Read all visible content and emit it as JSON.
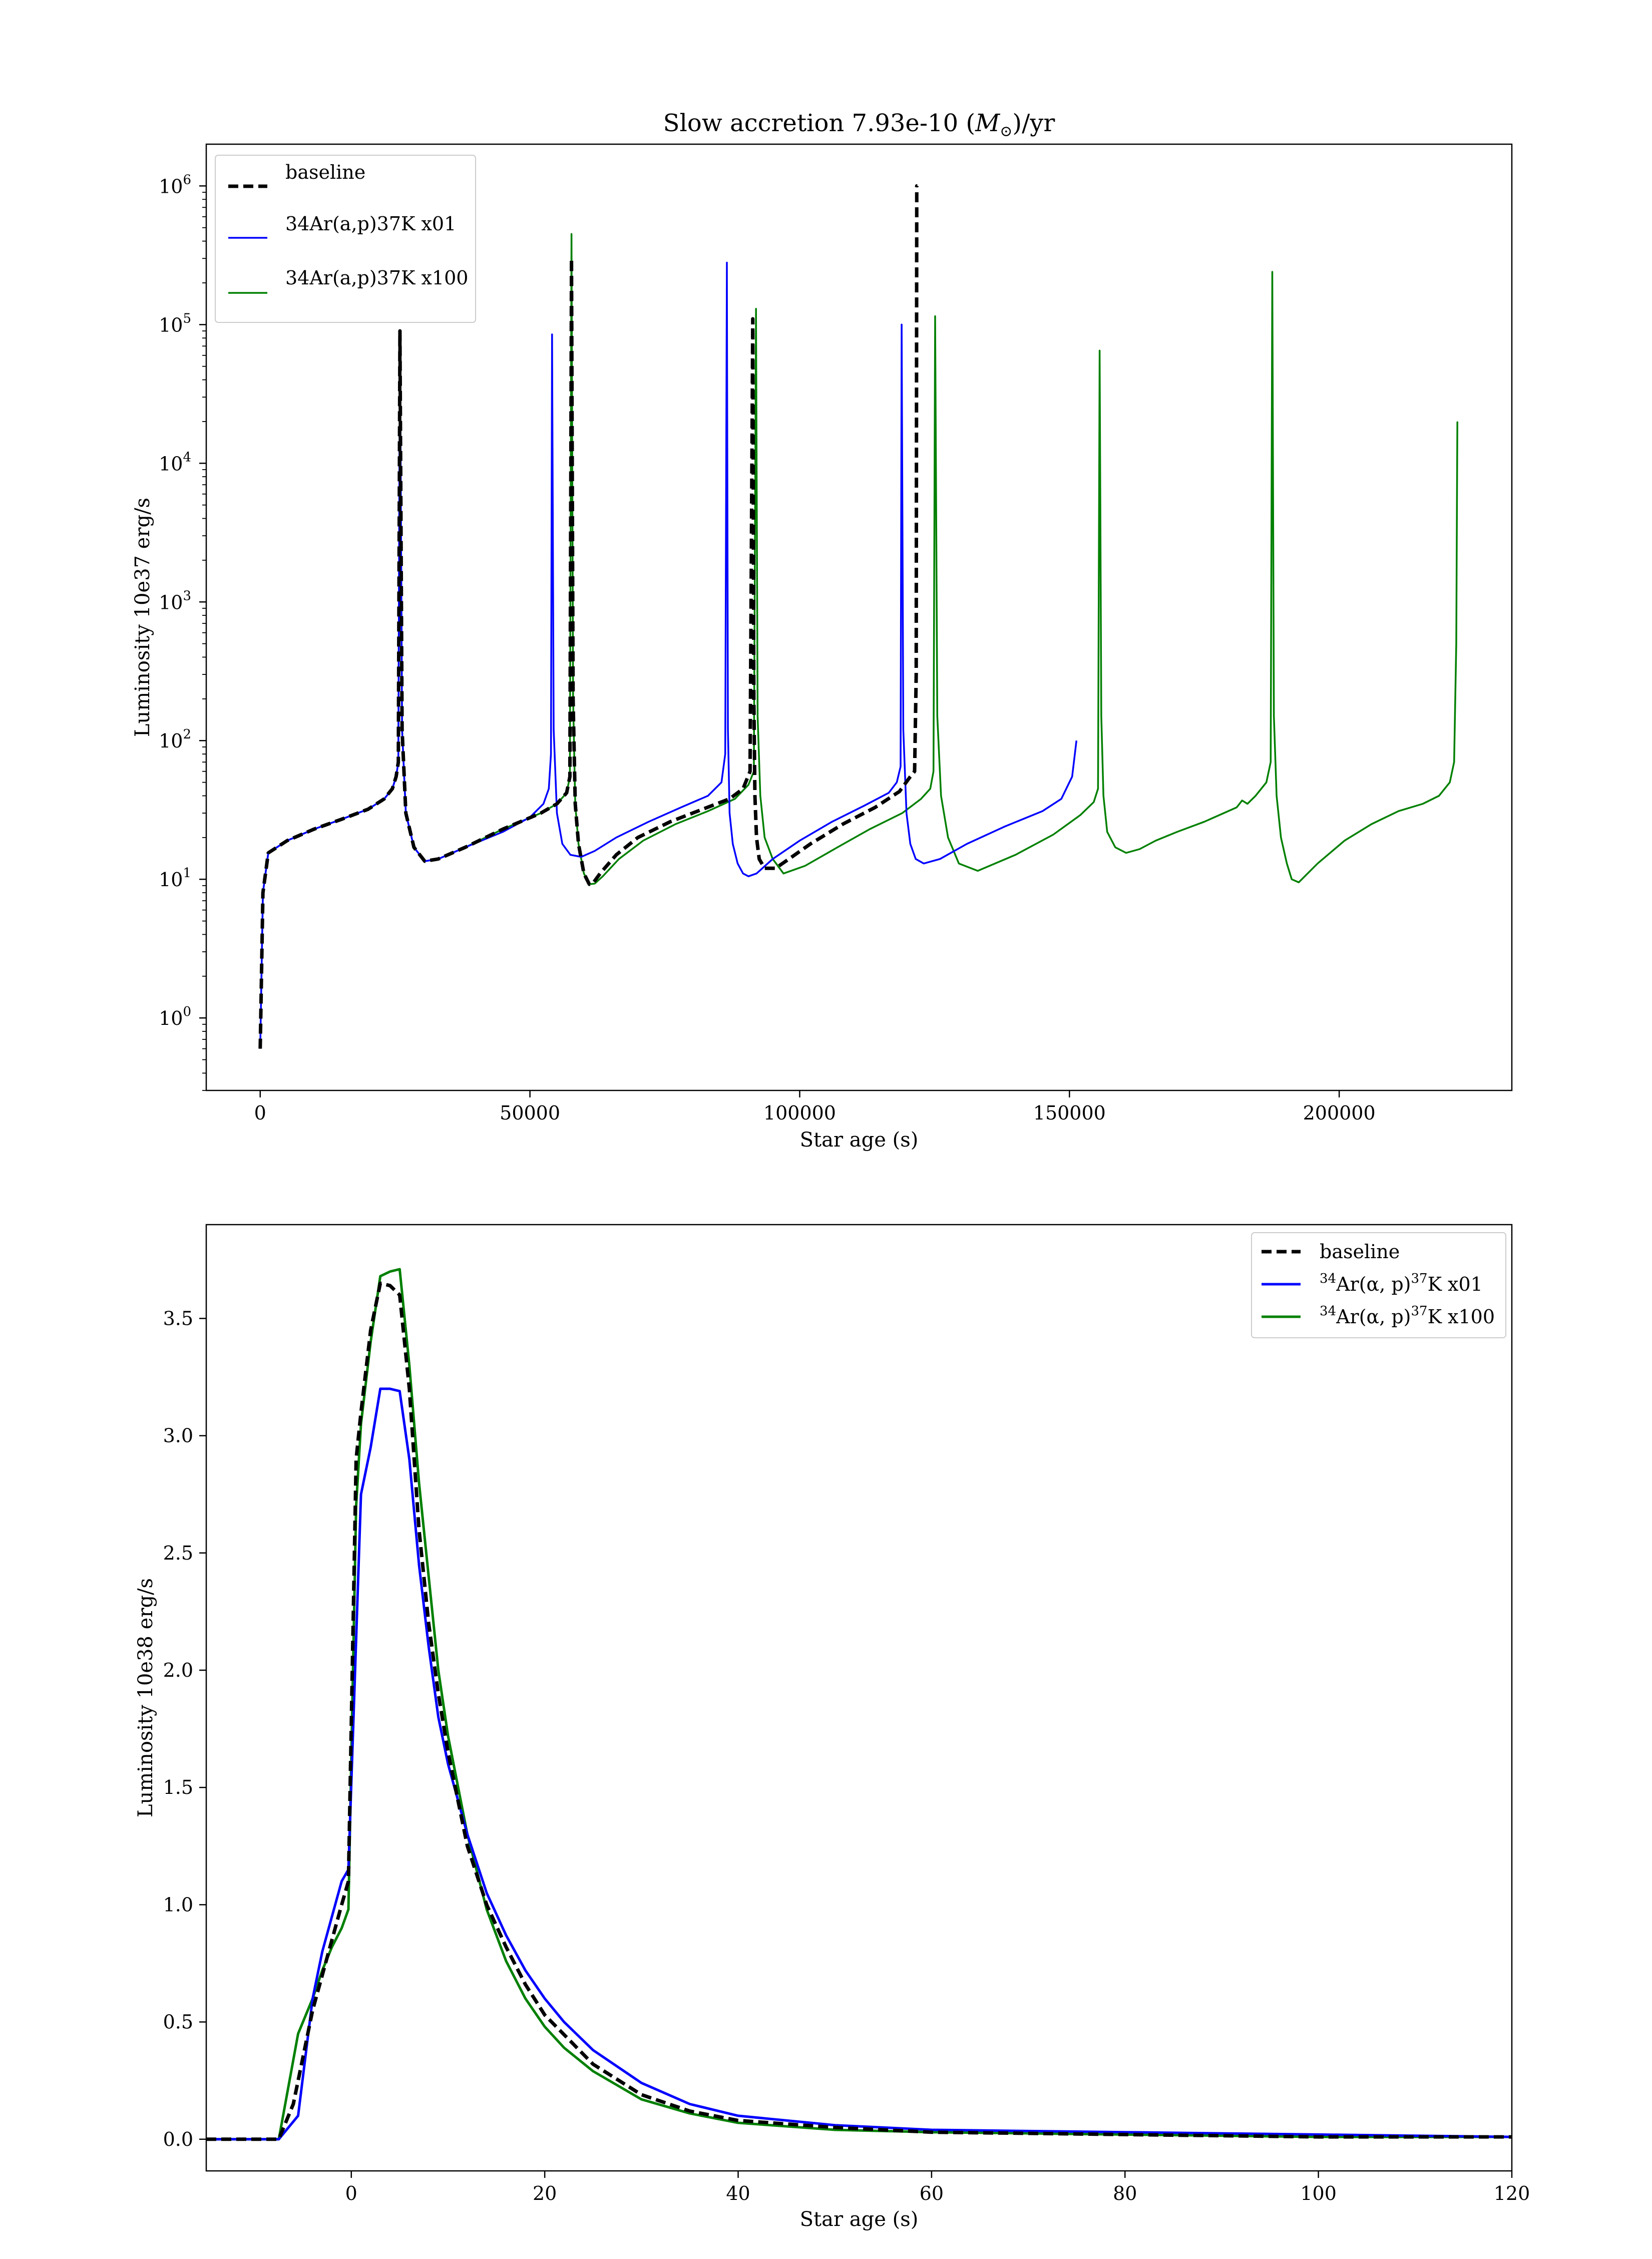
{
  "colors": {
    "baseline": "#000000",
    "x01": "#0000ff",
    "x100": "#008000"
  },
  "chart_data": [
    {
      "type": "line",
      "title": "Slow accretion 7.93e-10 (M⊙)/yr",
      "xlabel": "Star age (s)",
      "ylabel": "Luminosity 10e37 erg/s",
      "yscale": "log",
      "xlim": [
        -10000,
        232000
      ],
      "ylim": [
        0.3,
        2000000
      ],
      "xticks": [
        {
          "value": 0,
          "label": "0"
        },
        {
          "value": 50000,
          "label": "50000"
        },
        {
          "value": 100000,
          "label": "100000"
        },
        {
          "value": 150000,
          "label": "150000"
        },
        {
          "value": 200000,
          "label": "200000"
        }
      ],
      "yticks": [
        {
          "value": 1,
          "base": "10",
          "exp": "0"
        },
        {
          "value": 10,
          "base": "10",
          "exp": "1"
        },
        {
          "value": 100,
          "base": "10",
          "exp": "2"
        },
        {
          "value": 1000,
          "base": "10",
          "exp": "3"
        },
        {
          "value": 10000,
          "base": "10",
          "exp": "4"
        },
        {
          "value": 100000,
          "base": "10",
          "exp": "5"
        },
        {
          "value": 1000000,
          "base": "10",
          "exp": "6"
        }
      ],
      "legend_position": "upper-left",
      "series": [
        {
          "name": "baseline",
          "style": "dashed",
          "x": [
            0,
            500,
            1500,
            5000,
            10000,
            15000,
            20000,
            23000,
            24500,
            25200,
            25600,
            25900,
            26300,
            27000,
            28500,
            30500,
            33000,
            38000,
            45000,
            52000,
            55000,
            56800,
            57400,
            57700,
            58000,
            58400,
            59000,
            60000,
            61000,
            61800,
            63000,
            66000,
            70000,
            76000,
            82000,
            87000,
            89500,
            90800,
            91300,
            91500,
            91700,
            92000,
            92500,
            93500,
            95500,
            98000,
            102000,
            108000,
            114000,
            118500,
            120500,
            121300,
            121600,
            121700,
            121800
          ],
          "y": [
            0.6,
            8,
            15.5,
            19,
            23,
            27,
            32,
            38,
            45,
            55,
            70,
            90000,
            120,
            30,
            17,
            13.5,
            14,
            17,
            23,
            30,
            35,
            42,
            55,
            300000,
            200,
            35,
            18,
            11,
            9.2,
            9.5,
            11,
            15,
            20,
            26,
            32,
            38,
            45,
            60,
            110000,
            200,
            40,
            20,
            14,
            12,
            12,
            14,
            18,
            25,
            33,
            43,
            55,
            60,
            300,
            1000000,
            1000000
          ]
        },
        {
          "name": "34Ar(a,p)37K x01",
          "legend_label": "34Ar(a,p)37K x01",
          "style": "solid",
          "x": [
            0,
            500,
            1500,
            5000,
            10000,
            15000,
            20000,
            23000,
            24500,
            25200,
            25600,
            25900,
            26300,
            27000,
            28500,
            30500,
            33000,
            38000,
            45000,
            50000,
            52500,
            53500,
            53900,
            54100,
            54400,
            55000,
            56000,
            57500,
            59500,
            62000,
            66000,
            72000,
            78000,
            83000,
            85500,
            86200,
            86500,
            86700,
            87000,
            87600,
            88500,
            89500,
            90500,
            92000,
            95000,
            100000,
            106000,
            112000,
            116500,
            118000,
            118700,
            118900,
            119200,
            119800,
            120500,
            121500,
            123000,
            126000,
            131000,
            138000,
            145000,
            148500,
            150500,
            151300
          ],
          "y": [
            0.6,
            8,
            15.5,
            19,
            23,
            27,
            32,
            38,
            45,
            55,
            70,
            90000,
            120,
            30,
            17,
            13.5,
            14,
            17,
            22,
            28,
            35,
            45,
            80,
            85000,
            120,
            30,
            18,
            15,
            14.5,
            16,
            20,
            26,
            33,
            40,
            50,
            80,
            280000,
            120,
            30,
            18,
            13,
            11,
            10.5,
            11,
            14,
            19,
            26,
            34,
            42,
            50,
            65,
            100000,
            120,
            30,
            18,
            14,
            13,
            14,
            18,
            24,
            31,
            38,
            55,
            100
          ]
        },
        {
          "name": "34Ar(a,p)37K x100",
          "legend_label": "34Ar(a,p)37K x100",
          "style": "solid",
          "x": [
            0,
            500,
            1500,
            5000,
            10000,
            15000,
            20000,
            23000,
            24500,
            25200,
            25600,
            25900,
            26300,
            27000,
            28500,
            30500,
            33000,
            38000,
            45000,
            52000,
            55000,
            56800,
            57400,
            57700,
            58000,
            58400,
            59000,
            60000,
            61000,
            62000,
            63500,
            66500,
            71000,
            77000,
            83000,
            88000,
            90500,
            91500,
            91900,
            92200,
            92700,
            93500,
            95000,
            97000,
            101000,
            107000,
            113000,
            119000,
            122500,
            124200,
            124800,
            125100,
            125500,
            126200,
            127500,
            129500,
            133000,
            140000,
            147000,
            152000,
            154500,
            155300,
            155600,
            155900,
            156300,
            157000,
            158500,
            160500,
            163000,
            166000,
            170000,
            175000,
            181000,
            182000,
            183000,
            184500,
            186500,
            187300,
            187600,
            187900,
            188400,
            189200,
            190300,
            191200,
            192500,
            196000,
            201000,
            206000,
            211000,
            215500,
            218500,
            220500,
            221300,
            221700,
            221900
          ],
          "y": [
            0.6,
            8,
            15.5,
            19,
            23,
            27,
            32,
            38,
            45,
            55,
            70,
            90000,
            120,
            30,
            17,
            13.5,
            14,
            17,
            23,
            30,
            35,
            42,
            55,
            450000,
            200,
            35,
            18,
            11,
            9.2,
            9.3,
            10.5,
            14,
            19,
            25,
            31,
            38,
            48,
            60,
            130000,
            150,
            40,
            20,
            14,
            11,
            12.5,
            17,
            23,
            30,
            38,
            45,
            60,
            115000,
            150,
            40,
            20,
            13,
            11.5,
            15,
            21,
            29,
            36,
            45,
            65000,
            150,
            40,
            22,
            17,
            15.5,
            16.5,
            19,
            22,
            26,
            33,
            37,
            35,
            40,
            50,
            70,
            240000,
            150,
            40,
            20,
            13,
            10,
            9.5,
            13,
            19,
            25,
            31,
            35,
            40,
            50,
            70,
            500,
            20000
          ]
        }
      ]
    },
    {
      "type": "line",
      "xlabel": "Star age (s)",
      "ylabel": "Luminosity 10e38 erg/s",
      "yscale": "linear",
      "xlim": [
        -15,
        120
      ],
      "ylim": [
        -0.135,
        3.9
      ],
      "xticks": [
        {
          "value": 0,
          "label": "0"
        },
        {
          "value": 20,
          "label": "20"
        },
        {
          "value": 40,
          "label": "40"
        },
        {
          "value": 60,
          "label": "60"
        },
        {
          "value": 80,
          "label": "80"
        },
        {
          "value": 100,
          "label": "100"
        },
        {
          "value": 120,
          "label": "120"
        }
      ],
      "yticks": [
        {
          "value": 0.0,
          "label": "0.0"
        },
        {
          "value": 0.5,
          "label": "0.5"
        },
        {
          "value": 1.0,
          "label": "1.0"
        },
        {
          "value": 1.5,
          "label": "1.5"
        },
        {
          "value": 2.0,
          "label": "2.0"
        },
        {
          "value": 2.5,
          "label": "2.5"
        },
        {
          "value": 3.0,
          "label": "3.0"
        },
        {
          "value": 3.5,
          "label": "3.5"
        }
      ],
      "legend_position": "upper-right",
      "series": [
        {
          "name": "baseline",
          "style": "dashed",
          "x": [
            -15,
            -7.5,
            -6,
            -5,
            -4,
            -3,
            -2,
            -1,
            -0.3,
            0.5,
            1,
            2,
            3,
            4,
            5,
            6,
            7,
            8,
            9,
            10,
            12,
            14,
            16,
            18,
            20,
            25,
            30,
            35,
            40,
            50,
            60,
            80,
            100,
            120
          ],
          "y": [
            0.0,
            0.0,
            0.15,
            0.35,
            0.55,
            0.7,
            0.85,
            1.0,
            1.1,
            2.9,
            3.1,
            3.45,
            3.65,
            3.64,
            3.6,
            3.2,
            2.6,
            2.2,
            1.9,
            1.65,
            1.25,
            1.0,
            0.82,
            0.66,
            0.53,
            0.32,
            0.19,
            0.12,
            0.08,
            0.05,
            0.03,
            0.02,
            0.01,
            0.01
          ]
        },
        {
          "name": "34Ar(α,p)37K x01",
          "legend_main": "Ar(α, p)",
          "legend_sup1": "34",
          "legend_sup2": "37",
          "legend_tail": "K x01",
          "style": "solid",
          "x": [
            -15,
            -7.5,
            -5.5,
            -4,
            -3,
            -2,
            -1,
            -0.3,
            1,
            2,
            3,
            4,
            5,
            6,
            7,
            8,
            9,
            10,
            12,
            14,
            16,
            18,
            20,
            22,
            25,
            30,
            35,
            40,
            50,
            60,
            80,
            100,
            120
          ],
          "y": [
            0.0,
            0.0,
            0.1,
            0.6,
            0.8,
            0.95,
            1.1,
            1.15,
            2.75,
            2.95,
            3.2,
            3.2,
            3.19,
            2.9,
            2.45,
            2.1,
            1.8,
            1.6,
            1.3,
            1.05,
            0.87,
            0.72,
            0.6,
            0.5,
            0.38,
            0.24,
            0.15,
            0.1,
            0.06,
            0.04,
            0.03,
            0.02,
            0.01
          ]
        },
        {
          "name": "34Ar(α,p)37K x100",
          "legend_main": "Ar(α, p)",
          "legend_sup1": "34",
          "legend_sup2": "37",
          "legend_tail": "K x100",
          "style": "solid",
          "x": [
            -15,
            -7.5,
            -5.5,
            -4,
            -3,
            -2,
            -1,
            -0.3,
            0.5,
            1,
            2,
            3,
            4,
            5,
            6,
            7,
            8,
            9,
            10,
            12,
            14,
            16,
            18,
            20,
            22,
            25,
            30,
            35,
            40,
            50,
            60,
            80,
            100,
            120
          ],
          "y": [
            0.0,
            0.0,
            0.45,
            0.6,
            0.72,
            0.82,
            0.9,
            0.98,
            2.7,
            3.05,
            3.4,
            3.68,
            3.7,
            3.71,
            3.3,
            2.8,
            2.4,
            2.0,
            1.72,
            1.3,
            0.98,
            0.76,
            0.6,
            0.48,
            0.39,
            0.29,
            0.17,
            0.11,
            0.07,
            0.04,
            0.03,
            0.02,
            0.01,
            0.01
          ]
        }
      ]
    }
  ]
}
